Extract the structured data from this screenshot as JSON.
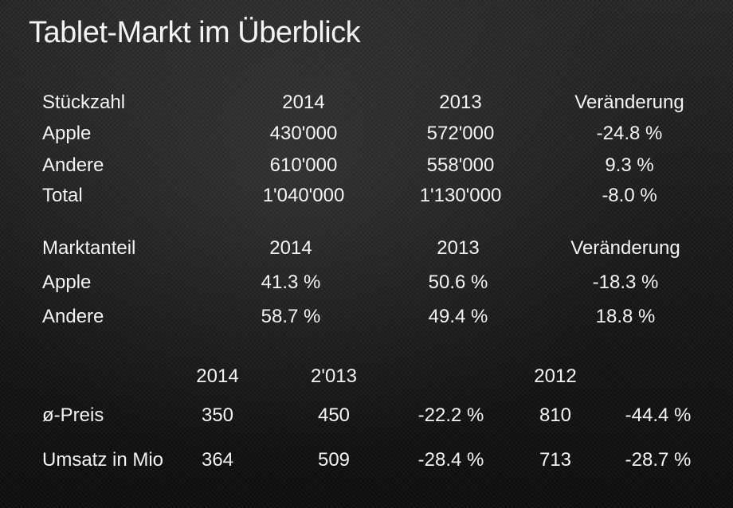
{
  "title": "Tablet-Markt im Überblick",
  "units_table": {
    "header": [
      "Stückzahl",
      "2014",
      "2013",
      "Veränderung"
    ],
    "rows": [
      [
        "Apple",
        "430'000",
        "572'000",
        "-24.8 %"
      ],
      [
        "Andere",
        "610'000",
        "558'000",
        "9.3 %"
      ],
      [
        "Total",
        "1'040'000",
        "1'130'000",
        "-8.0 %"
      ]
    ]
  },
  "share_table": {
    "header": [
      "Marktanteil",
      "2014",
      "2013",
      "Veränderung"
    ],
    "rows": [
      [
        "Apple",
        "41.3 %",
        "50.6 %",
        "-18.3 %"
      ],
      [
        "Andere",
        "58.7 %",
        "49.4 %",
        "18.8 %"
      ]
    ]
  },
  "price_table": {
    "header": [
      "",
      "2014",
      "2'013",
      "",
      "2012",
      ""
    ],
    "rows": [
      [
        "ø-Preis",
        "350",
        "450",
        "-22.2 %",
        "810",
        "-44.4 %"
      ],
      [
        "Umsatz in Mio",
        "364",
        "509",
        "-28.4 %",
        "713",
        "-28.7 %"
      ]
    ]
  }
}
